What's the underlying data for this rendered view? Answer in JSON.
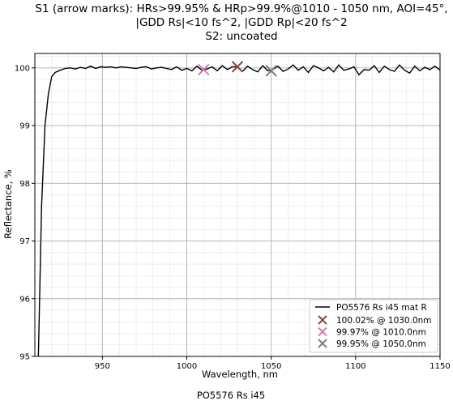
{
  "chart_data": {
    "type": "line",
    "title_lines": [
      "S1 (arrow marks): HRs>99.95% & HRp>99.9%@1010 - 1050 nm, AOI=45°,",
      "|GDD Rs|<10 fs^2, |GDD Rp|<20 fs^2",
      "S2: uncoated"
    ],
    "xlabel": "Wavelength, nm",
    "ylabel": "Reflectance, %",
    "xlim": [
      910,
      1150
    ],
    "ylim": [
      95,
      100.25
    ],
    "x_ticks": [
      950,
      1000,
      1050,
      1100,
      1150
    ],
    "x_tick_labels": [
      "950",
      "1000",
      "1050",
      "1100",
      "1150"
    ],
    "y_ticks": [
      95,
      96,
      97,
      98,
      99,
      100
    ],
    "y_tick_labels": [
      "95",
      "96",
      "97",
      "98",
      "99",
      "100"
    ],
    "grid": true,
    "legend_position": "lower-right",
    "series": [
      {
        "name": "PO5576 Rs i45 mat R",
        "color": "#000000",
        "x": [
          912,
          914,
          916,
          918,
          920,
          922,
          925,
          928,
          931,
          934,
          937,
          940,
          943,
          946,
          949,
          952,
          955,
          958,
          961,
          964,
          967,
          970,
          973,
          976,
          979,
          982,
          985,
          988,
          991,
          994,
          997,
          1000,
          1003,
          1006,
          1009,
          1012,
          1015,
          1018,
          1021,
          1024,
          1027,
          1030,
          1033,
          1036,
          1039,
          1042,
          1045,
          1048,
          1051,
          1054,
          1057,
          1060,
          1063,
          1066,
          1069,
          1072,
          1075,
          1078,
          1081,
          1084,
          1087,
          1090,
          1093,
          1096,
          1099,
          1102,
          1105,
          1108,
          1111,
          1114,
          1117,
          1120,
          1123,
          1126,
          1129,
          1132,
          1135,
          1138,
          1141,
          1144,
          1147,
          1150
        ],
        "y": [
          94.9,
          97.6,
          99.0,
          99.55,
          99.85,
          99.92,
          99.96,
          99.99,
          100.0,
          99.98,
          100.01,
          99.99,
          100.03,
          99.99,
          100.02,
          100.01,
          100.02,
          100.0,
          100.02,
          100.01,
          100.0,
          99.99,
          100.01,
          100.02,
          99.98,
          100.0,
          100.01,
          99.99,
          99.97,
          100.02,
          99.96,
          99.99,
          99.95,
          100.03,
          99.96,
          99.98,
          100.02,
          99.95,
          100.04,
          99.97,
          100.02,
          100.02,
          99.94,
          100.03,
          99.97,
          99.93,
          100.04,
          99.95,
          99.97,
          100.03,
          99.94,
          99.98,
          100.05,
          99.96,
          100.02,
          99.92,
          100.04,
          100.0,
          99.95,
          100.01,
          99.93,
          100.05,
          99.96,
          99.98,
          100.02,
          99.88,
          99.97,
          99.96,
          100.04,
          99.92,
          100.03,
          99.97,
          99.94,
          100.05,
          99.96,
          99.91,
          100.03,
          99.95,
          100.01,
          99.97,
          100.03,
          99.96
        ]
      }
    ],
    "markers": [
      {
        "label": "100.02% @ 1030.0nm",
        "x": 1030.0,
        "y": 100.02,
        "color": "#8b4a3c"
      },
      {
        "label": "99.97% @ 1010.0nm",
        "x": 1010.0,
        "y": 99.97,
        "color": "#d778b8"
      },
      {
        "label": "99.95% @ 1050.0nm",
        "x": 1050.0,
        "y": 99.95,
        "color": "#808080"
      }
    ],
    "footer": "PO5576 Rs i45"
  }
}
